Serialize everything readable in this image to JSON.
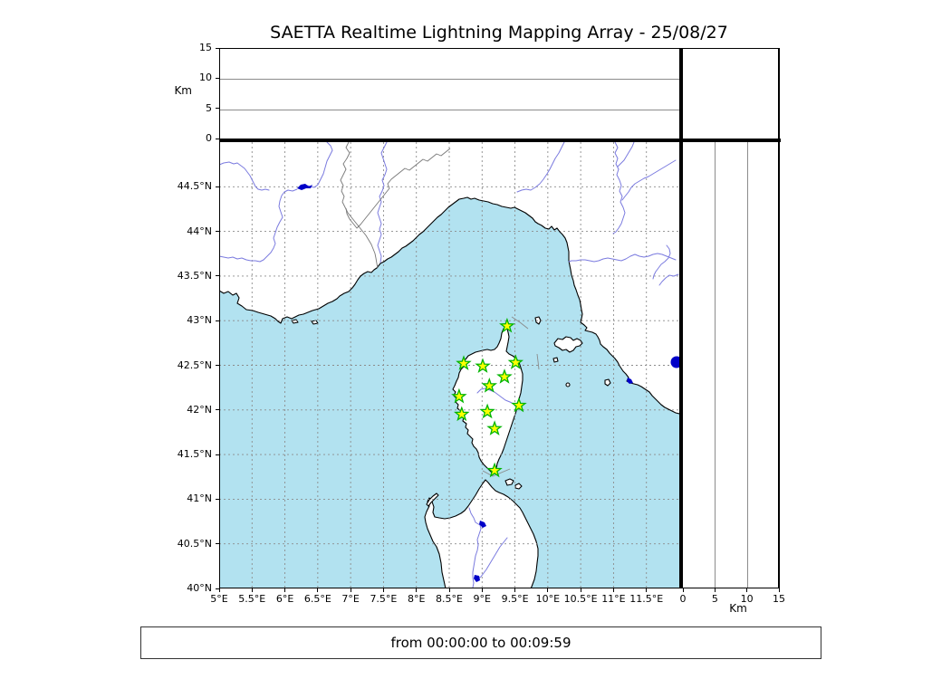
{
  "title": "SAETTA Realtime Lightning Mapping Array - 25/08/27",
  "status_bar": {
    "text": "from 00:00:00 to 00:09:59"
  },
  "altitude_axis": {
    "label": "Km",
    "ticks": [
      0,
      5,
      10,
      15
    ],
    "max_km": 15,
    "gridline_values": [
      5,
      10
    ]
  },
  "map": {
    "lon_range": [
      5,
      12
    ],
    "lat_range": [
      40,
      45
    ],
    "lon_tick_labels": [
      "5°E",
      "5.5°E",
      "6°E",
      "6.5°E",
      "7°E",
      "7.5°E",
      "8°E",
      "8.5°E",
      "9°E",
      "9.5°E",
      "10°E",
      "10.5°E",
      "11°E",
      "11.5°E"
    ],
    "lat_tick_labels": [
      "40°N",
      "40.5°N",
      "41°N",
      "41.5°N",
      "42°N",
      "42.5°N",
      "43°N",
      "43.5°N",
      "44°N",
      "44.5°N"
    ],
    "stations": [
      {
        "lon": 9.38,
        "lat": 42.94
      },
      {
        "lon": 8.72,
        "lat": 42.52
      },
      {
        "lon": 9.01,
        "lat": 42.49
      },
      {
        "lon": 9.51,
        "lat": 42.53
      },
      {
        "lon": 9.34,
        "lat": 42.37
      },
      {
        "lon": 9.11,
        "lat": 42.27
      },
      {
        "lon": 8.65,
        "lat": 42.15
      },
      {
        "lon": 9.56,
        "lat": 42.05
      },
      {
        "lon": 8.69,
        "lat": 41.95
      },
      {
        "lon": 9.08,
        "lat": 41.98
      },
      {
        "lon": 9.19,
        "lat": 41.79
      },
      {
        "lon": 9.19,
        "lat": 41.32
      }
    ],
    "colors": {
      "sea": "#b2e2f0",
      "land": "#ffffff",
      "river": "#7b7bdf",
      "border": "#777777",
      "lake": "#0000c8",
      "grid": "#8c8c8c",
      "star_fill": "#ffff00",
      "star_stroke": "#00b400"
    }
  }
}
